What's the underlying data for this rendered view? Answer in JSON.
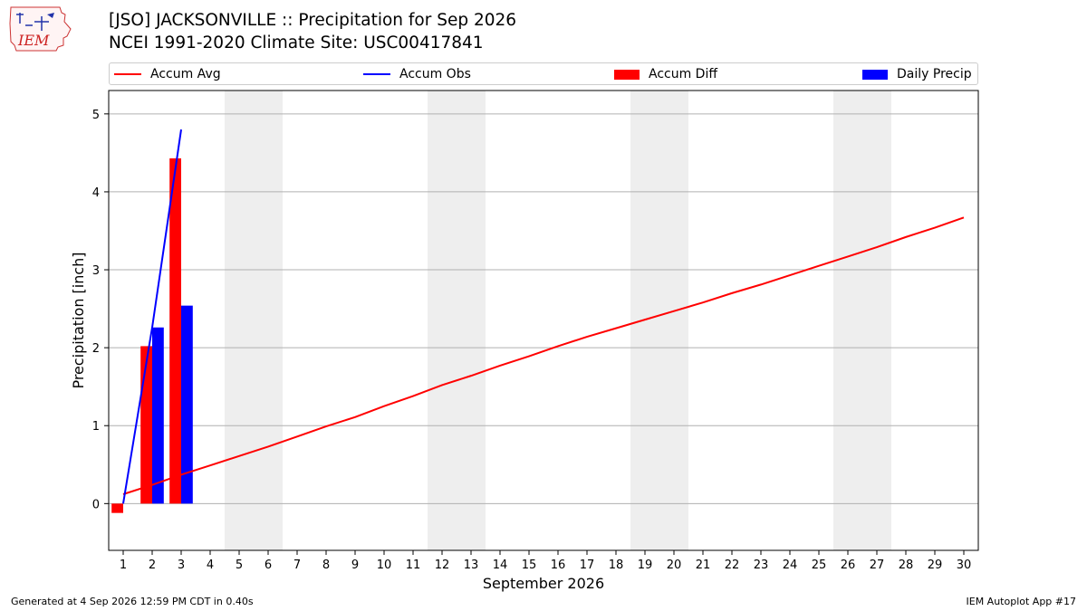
{
  "header": {
    "title_line1": "[JSO] JACKSONVILLE :: Precipitation for Sep 2026",
    "title_line2": "NCEI 1991-2020 Climate Site: USC00417841",
    "logo_text": "IEM"
  },
  "footer": {
    "generated": "Generated at 4 Sep 2026 12:59 PM CDT in 0.40s",
    "app": "IEM Autoplot App #17"
  },
  "legend": {
    "accum_avg": "Accum Avg",
    "accum_obs": "Accum Obs",
    "accum_diff": "Accum Diff",
    "daily_precip": "Daily Precip"
  },
  "colors": {
    "avg": "#ff0000",
    "obs": "#0000ff",
    "diff": "#ff0000",
    "daily": "#0000ff",
    "weekend_band": "#eeeeee",
    "grid": "#b0b0b0"
  },
  "chart_data": {
    "type": "bar",
    "xlabel": "September 2026",
    "ylabel": "Precipitation [inch]",
    "x": [
      1,
      2,
      3,
      4,
      5,
      6,
      7,
      8,
      9,
      10,
      11,
      12,
      13,
      14,
      15,
      16,
      17,
      18,
      19,
      20,
      21,
      22,
      23,
      24,
      25,
      26,
      27,
      28,
      29,
      30
    ],
    "ylim": [
      -0.6,
      5.3
    ],
    "yticks": [
      0,
      1,
      2,
      3,
      4,
      5
    ],
    "grid": "horizontal",
    "legend_placement": "top",
    "weekend_bands": [
      [
        5,
        6
      ],
      [
        12,
        13
      ],
      [
        19,
        20
      ],
      [
        26,
        27
      ]
    ],
    "series": [
      {
        "name": "Accum Avg",
        "type": "line",
        "x": [
          1,
          2,
          3,
          4,
          5,
          6,
          7,
          8,
          9,
          10,
          11,
          12,
          13,
          14,
          15,
          16,
          17,
          18,
          19,
          20,
          21,
          22,
          23,
          24,
          25,
          26,
          27,
          28,
          29,
          30
        ],
        "values": [
          0.12,
          0.24,
          0.37,
          0.49,
          0.61,
          0.73,
          0.86,
          0.99,
          1.11,
          1.25,
          1.38,
          1.52,
          1.64,
          1.77,
          1.89,
          2.02,
          2.14,
          2.25,
          2.36,
          2.47,
          2.58,
          2.7,
          2.81,
          2.93,
          3.05,
          3.17,
          3.29,
          3.42,
          3.54,
          3.67
        ]
      },
      {
        "name": "Accum Obs",
        "type": "line",
        "x": [
          1,
          2,
          3
        ],
        "values": [
          0.0,
          2.26,
          4.8
        ]
      },
      {
        "name": "Accum Diff",
        "type": "bar",
        "x": [
          1,
          2,
          3
        ],
        "values": [
          -0.12,
          2.02,
          4.43
        ]
      },
      {
        "name": "Daily Precip",
        "type": "bar",
        "x": [
          1,
          2,
          3
        ],
        "values": [
          0.0,
          2.26,
          2.54
        ]
      }
    ]
  }
}
